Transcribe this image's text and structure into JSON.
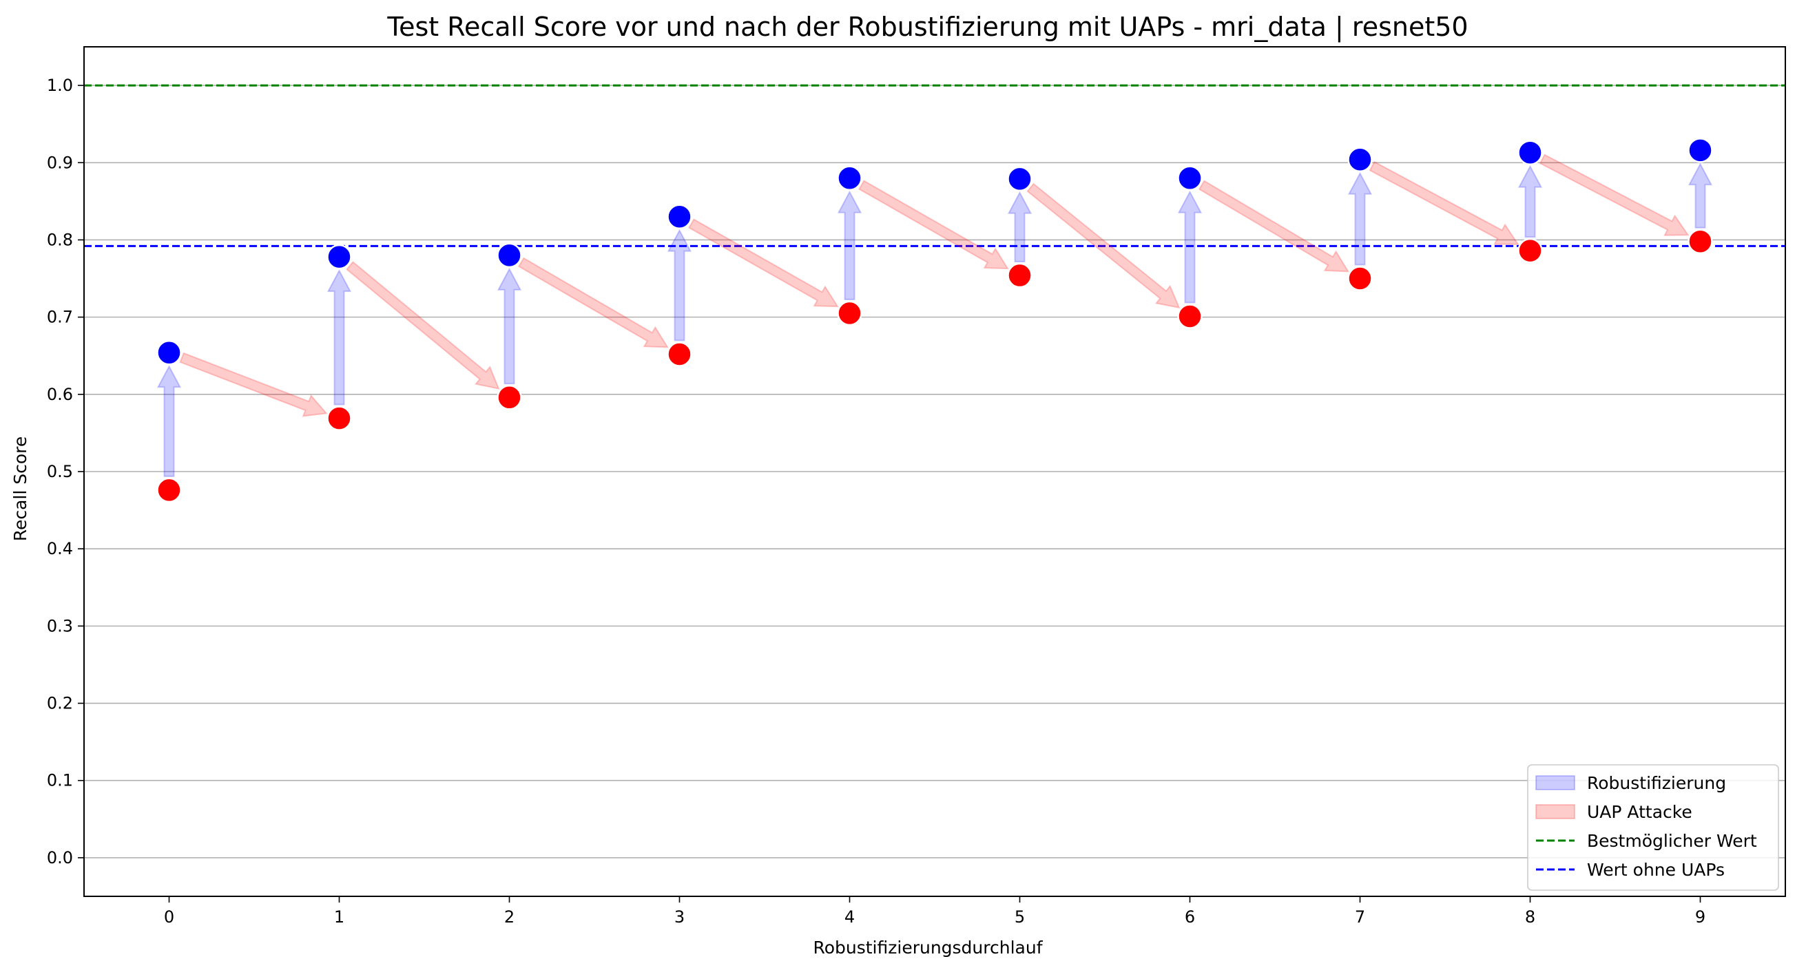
{
  "chart_data": {
    "type": "scatter",
    "title": "Test Recall Score vor und nach der Robustifizierung mit UAPs - mri_data | resnet50",
    "xlabel": "Robustifizierungsdurchlauf",
    "ylabel": "Recall Score",
    "xlim": [
      -0.5,
      9.5
    ],
    "ylim": [
      -0.05,
      1.05
    ],
    "x_ticks": [
      "0",
      "1",
      "2",
      "3",
      "4",
      "5",
      "6",
      "7",
      "8",
      "9"
    ],
    "y_ticks": [
      "0.0",
      "0.1",
      "0.2",
      "0.3",
      "0.4",
      "0.5",
      "0.6",
      "0.7",
      "0.8",
      "0.9",
      "1.0"
    ],
    "grid": "horizontal",
    "legend_position": "bottom-right",
    "x": [
      0,
      1,
      2,
      3,
      4,
      5,
      6,
      7,
      8,
      9
    ],
    "before": [
      0.476,
      0.569,
      0.596,
      0.652,
      0.705,
      0.754,
      0.701,
      0.75,
      0.786,
      0.798
    ],
    "after": [
      0.654,
      0.778,
      0.78,
      0.83,
      0.88,
      0.879,
      0.88,
      0.904,
      0.913,
      0.916
    ],
    "reference_lines": [
      {
        "name": "Bestmöglicher Wert",
        "value": 1.0,
        "color": "#008000"
      },
      {
        "name": "Wert ohne UAPs",
        "value": 0.792,
        "color": "#0000ff"
      }
    ],
    "legend": [
      {
        "label": "Robustifizierung",
        "kind": "arrow",
        "color": "#0000ff"
      },
      {
        "label": "UAP Attacke",
        "kind": "arrow",
        "color": "#ff0000"
      },
      {
        "label": "Bestmöglicher Wert",
        "kind": "dashed",
        "color": "#008000"
      },
      {
        "label": "Wert ohne UAPs",
        "kind": "dashed",
        "color": "#0000ff"
      }
    ],
    "colors": {
      "after_point": "#0000ff",
      "before_point": "#ff0000",
      "robust_arrow": "#0000ff",
      "attack_arrow": "#ff0000"
    }
  }
}
